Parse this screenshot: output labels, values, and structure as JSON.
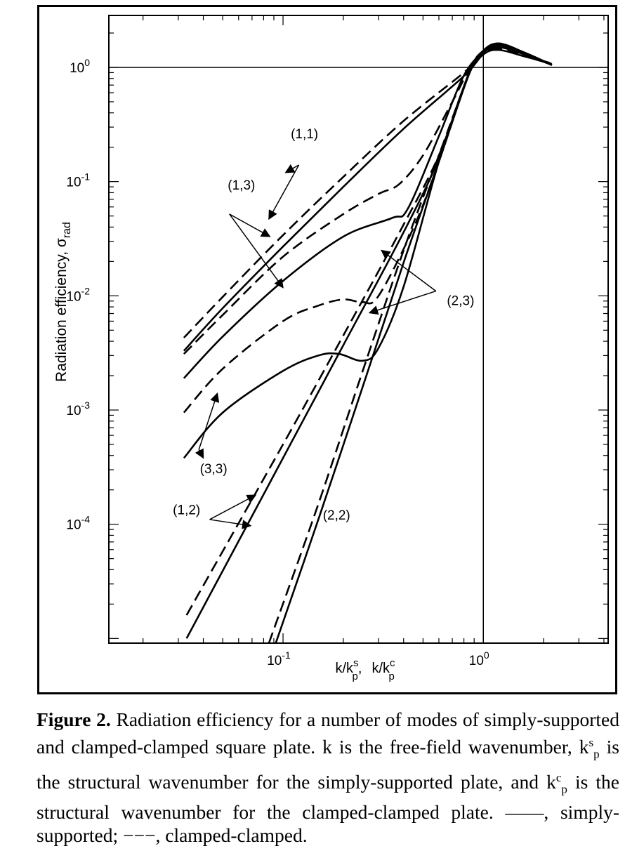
{
  "figure": {
    "y_axis_label": "Radiation efficiency, σ",
    "y_axis_label_sub": "rad",
    "x_axis_label": {
      "part1": "k/k",
      "sup1": "s",
      "sub1": "p",
      "separator": ",",
      "part2": "k/k",
      "sup2": "c",
      "sub2": "p"
    },
    "x_ticks": [
      {
        "value": 0.1,
        "base": "10",
        "exp": "-1"
      },
      {
        "value": 1,
        "base": "10",
        "exp": "0"
      }
    ],
    "y_ticks": [
      {
        "value": 1,
        "base": "10",
        "exp": "0"
      },
      {
        "value": 0.1,
        "base": "10",
        "exp": "-1"
      },
      {
        "value": 0.01,
        "base": "10",
        "exp": "-2"
      },
      {
        "value": 0.001,
        "base": "10",
        "exp": "-3"
      },
      {
        "value": 0.0001,
        "base": "10",
        "exp": "-4"
      }
    ],
    "annotations": [
      "(1,1)",
      "(1,3)",
      "(2,3)",
      "(3,3)",
      "(1,2)",
      "(2,2)"
    ]
  },
  "chart_data": {
    "type": "line",
    "xscale": "log",
    "yscale": "log",
    "xlim": [
      0.0135,
      4.2
    ],
    "ylim": [
      9.1e-06,
      2.85
    ],
    "grid": false,
    "reference_lines": {
      "x": 1,
      "y": 1
    },
    "xlabel": "k/kp^s, k/kp^c",
    "ylabel": "Radiation efficiency, σrad",
    "legend": "in caption: solid = simply-supported; dashed = clamped-clamped",
    "series": [
      {
        "name": "(1,1)",
        "style": "solid",
        "x": [
          0.032,
          0.05,
          0.1,
          0.2,
          0.4,
          0.8,
          1.0,
          1.2,
          1.6,
          2.2
        ],
        "y": [
          0.0033,
          0.0078,
          0.027,
          0.09,
          0.29,
          0.84,
          1.3,
          1.42,
          1.25,
          1.07
        ]
      },
      {
        "name": "(1,1)",
        "style": "dashed",
        "x": [
          0.032,
          0.05,
          0.1,
          0.2,
          0.4,
          0.8,
          1.0,
          1.2,
          1.6,
          2.2
        ],
        "y": [
          0.0043,
          0.0098,
          0.034,
          0.11,
          0.34,
          0.9,
          1.3,
          1.45,
          1.28,
          1.08
        ]
      },
      {
        "name": "(1,3)",
        "style": "solid",
        "x": [
          0.032,
          0.05,
          0.1,
          0.2,
          0.35,
          0.42,
          0.6,
          0.8,
          1.0,
          1.2,
          1.6,
          2.2
        ],
        "y": [
          0.0019,
          0.0044,
          0.0135,
          0.033,
          0.048,
          0.058,
          0.25,
          0.85,
          1.35,
          1.5,
          1.3,
          1.05
        ]
      },
      {
        "name": "(1,3)",
        "style": "dashed",
        "x": [
          0.032,
          0.05,
          0.1,
          0.2,
          0.3,
          0.38,
          0.5,
          0.7,
          0.85,
          1.0,
          1.2,
          1.6,
          2.2
        ],
        "y": [
          0.0031,
          0.0068,
          0.022,
          0.052,
          0.078,
          0.095,
          0.17,
          0.5,
          0.95,
          1.3,
          1.5,
          1.3,
          1.05
        ]
      },
      {
        "name": "(3,3)",
        "style": "solid",
        "x": [
          0.032,
          0.05,
          0.1,
          0.15,
          0.19,
          0.25,
          0.3,
          0.4,
          0.6,
          0.85,
          1.0,
          1.2,
          1.6,
          2.2
        ],
        "y": [
          0.00038,
          0.00095,
          0.0022,
          0.003,
          0.0031,
          0.0027,
          0.0035,
          0.012,
          0.15,
          0.9,
          1.4,
          1.6,
          1.35,
          1.05
        ]
      },
      {
        "name": "(3,3)",
        "style": "dashed",
        "x": [
          0.032,
          0.05,
          0.1,
          0.15,
          0.2,
          0.25,
          0.3,
          0.45,
          0.6,
          0.85,
          1.0,
          1.2,
          1.6,
          2.2
        ],
        "y": [
          0.00095,
          0.0023,
          0.006,
          0.0082,
          0.0093,
          0.0088,
          0.01,
          0.04,
          0.15,
          0.9,
          1.4,
          1.6,
          1.35,
          1.05
        ]
      },
      {
        "name": "(1,2)",
        "style": "solid",
        "x": [
          0.033,
          0.1,
          0.2,
          0.4,
          0.6,
          0.85,
          1.0,
          1.2,
          1.6,
          2.2
        ],
        "y": [
          1e-05,
          0.00038,
          0.0037,
          0.036,
          0.16,
          0.88,
          1.35,
          1.55,
          1.3,
          1.05
        ]
      },
      {
        "name": "(1,2)",
        "style": "dashed",
        "x": [
          0.033,
          0.1,
          0.2,
          0.4,
          0.6,
          0.85,
          1.0,
          1.2,
          1.6,
          2.2
        ],
        "y": [
          1.6e-05,
          0.0005,
          0.0045,
          0.042,
          0.17,
          0.88,
          1.35,
          1.55,
          1.3,
          1.05
        ]
      },
      {
        "name": "(2,2)",
        "style": "solid",
        "x": [
          0.092,
          0.15,
          0.25,
          0.4,
          0.6,
          0.85,
          1.0,
          1.2,
          1.6,
          2.2
        ],
        "y": [
          9.1e-06,
          0.00011,
          0.0016,
          0.0195,
          0.15,
          0.88,
          1.4,
          1.62,
          1.35,
          1.05
        ]
      },
      {
        "name": "(2,2)",
        "style": "dashed",
        "x": [
          0.085,
          0.15,
          0.25,
          0.4,
          0.6,
          0.85,
          1.0,
          1.2,
          1.6,
          2.2
        ],
        "y": [
          9.1e-06,
          0.00015,
          0.0022,
          0.025,
          0.17,
          0.88,
          1.4,
          1.62,
          1.35,
          1.05
        ]
      }
    ]
  },
  "caption": {
    "lead": "Figure 2.",
    "t1": " Radiation efficiency for a number of modes of simply-supported and clamped-clamped square plate. k is the free-field wavenumber, k",
    "s1_sup": "s",
    "s1_sub": "p",
    "t2": " is the structural wavenumber for the simply-supported plate, and k",
    "s2_sup": "c",
    "s2_sub": "p",
    "t3": " is the structural wavenumber for the clamped-clamped plate. ——, simply-supported; −−−, clamped-clamped."
  }
}
